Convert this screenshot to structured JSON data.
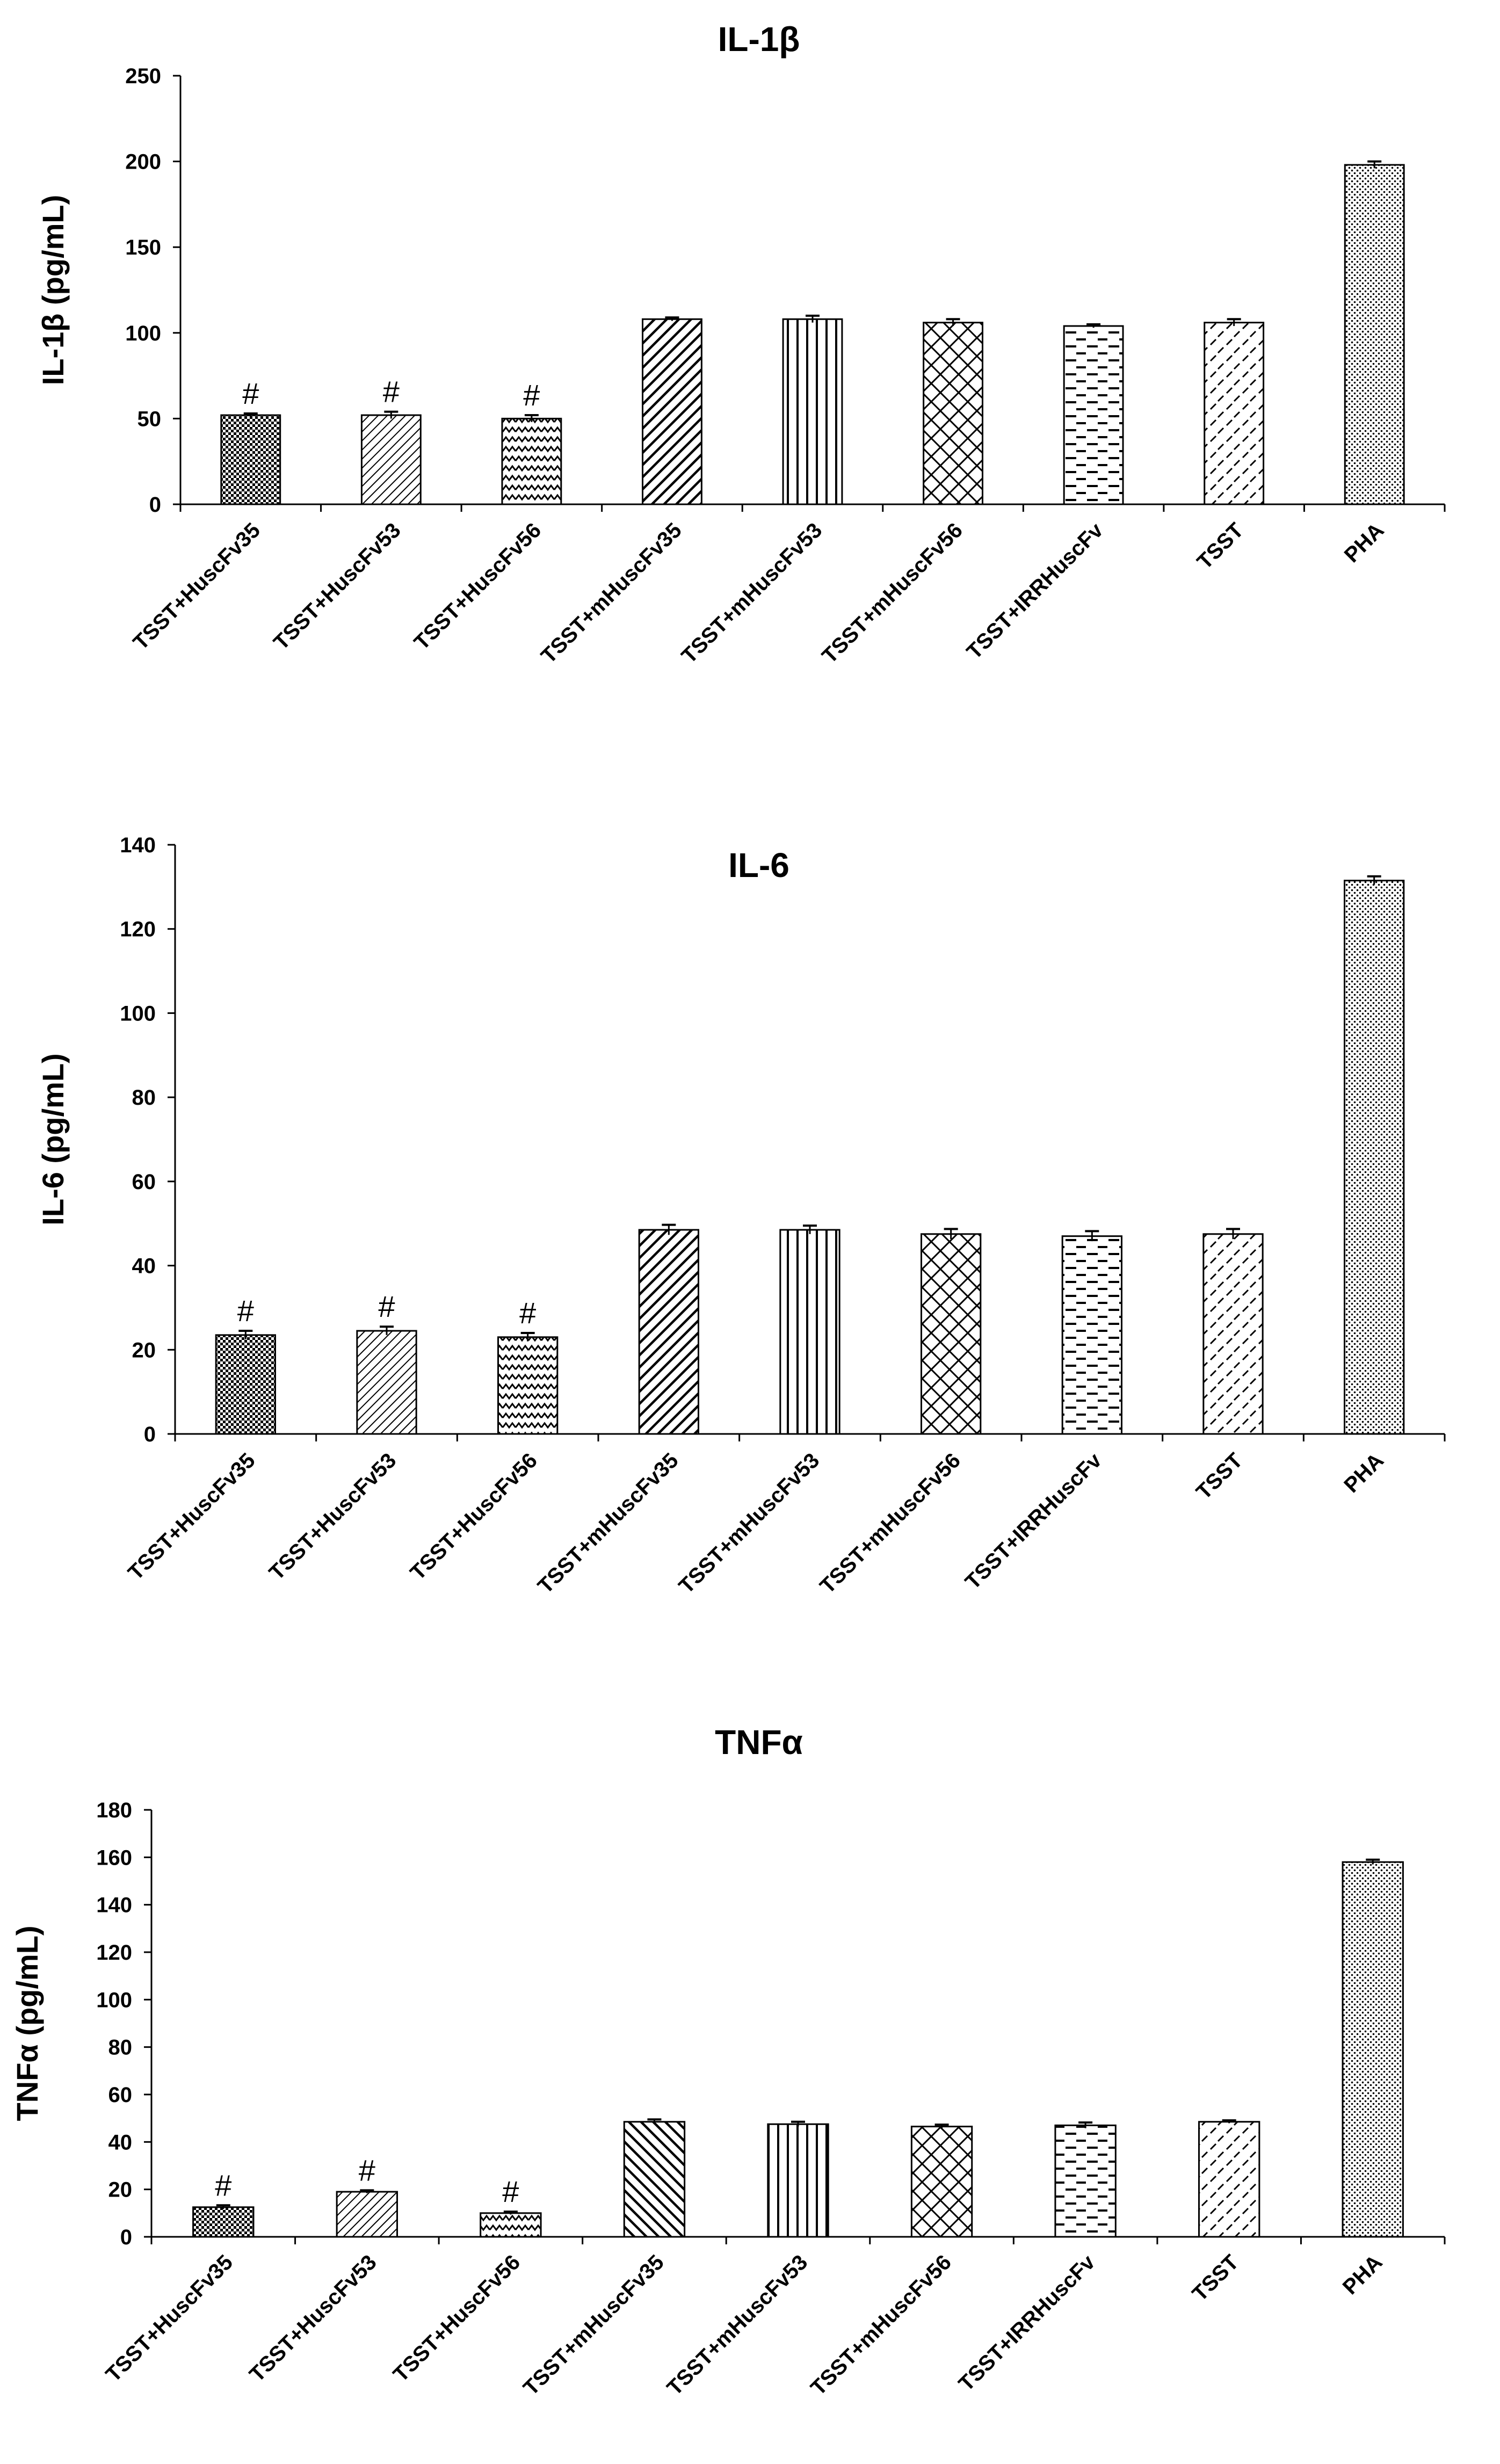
{
  "chart_data": [
    {
      "type": "bar",
      "title": "IL-1β",
      "xlabel": "",
      "ylabel": "IL-1β (pg/mL)",
      "ylim": [
        0,
        250
      ],
      "yticks": [
        0,
        50,
        100,
        150,
        200,
        250
      ],
      "categories": [
        "TSST+HuscFv35",
        "TSST+HuscFv53",
        "TSST+HuscFv56",
        "TSST+mHuscFv35",
        "TSST+mHuscFv53",
        "TSST+mHuscFv56",
        "TSST+IRRHuscFv",
        "TSST",
        "PHA"
      ],
      "values": [
        52,
        52,
        50,
        108,
        108,
        106,
        104,
        106,
        198
      ],
      "errors": [
        1,
        2,
        2,
        1,
        2,
        2,
        1,
        2,
        2
      ],
      "annotations": [
        "#",
        "#",
        "#",
        "",
        "",
        "",
        "",
        "",
        ""
      ],
      "patterns": [
        "checker",
        "diag-fine",
        "zigzag",
        "diag-thick",
        "vertical",
        "crosshatch",
        "dash",
        "slash",
        "dots"
      ],
      "grid": false
    },
    {
      "type": "bar",
      "title": "IL-6",
      "xlabel": "",
      "ylabel": "IL-6 (pg/mL)",
      "ylim": [
        0,
        140
      ],
      "yticks": [
        0,
        20,
        40,
        60,
        80,
        100,
        120,
        140
      ],
      "categories": [
        "TSST+HuscFv35",
        "TSST+HuscFv53",
        "TSST+HuscFv56",
        "TSST+mHuscFv35",
        "TSST+mHuscFv53",
        "TSST+mHuscFv56",
        "TSST+IRRHuscFv",
        "TSST",
        "PHA"
      ],
      "values": [
        23.5,
        24.5,
        23,
        48.5,
        48.5,
        47.5,
        47,
        47.5,
        131.5
      ],
      "errors": [
        1,
        1,
        1,
        1.2,
        1,
        1.2,
        1.2,
        1.2,
        1
      ],
      "annotations": [
        "#",
        "#",
        "#",
        "",
        "",
        "",
        "",
        "",
        ""
      ],
      "patterns": [
        "checker",
        "diag-fine",
        "zigzag",
        "diag-thick",
        "vertical",
        "crosshatch",
        "dash",
        "slash",
        "dots"
      ],
      "grid": false
    },
    {
      "type": "bar",
      "title": "TNFα",
      "xlabel": "",
      "ylabel": "TNFα (pg/mL)",
      "ylim": [
        0,
        180
      ],
      "yticks": [
        0,
        20,
        40,
        60,
        80,
        100,
        120,
        140,
        160,
        180
      ],
      "categories": [
        "TSST+HuscFv35",
        "TSST+HuscFv53",
        "TSST+HuscFv56",
        "TSST+mHuscFv35",
        "TSST+mHuscFv53",
        "TSST+mHuscFv56",
        "TSST+IRRHuscFv",
        "TSST",
        "PHA"
      ],
      "values": [
        12.5,
        19,
        10,
        48.5,
        47.5,
        46.5,
        47,
        48.5,
        158
      ],
      "errors": [
        0.8,
        0.6,
        0.6,
        1,
        1,
        0.8,
        1.2,
        0.6,
        1
      ],
      "annotations": [
        "#",
        "#",
        "#",
        "",
        "",
        "",
        "",
        "",
        ""
      ],
      "patterns": [
        "checker",
        "diag-fine",
        "zigzag",
        "diag-thick-rev",
        "vertical",
        "crosshatch",
        "dash",
        "slash",
        "dots"
      ],
      "grid": false
    }
  ]
}
